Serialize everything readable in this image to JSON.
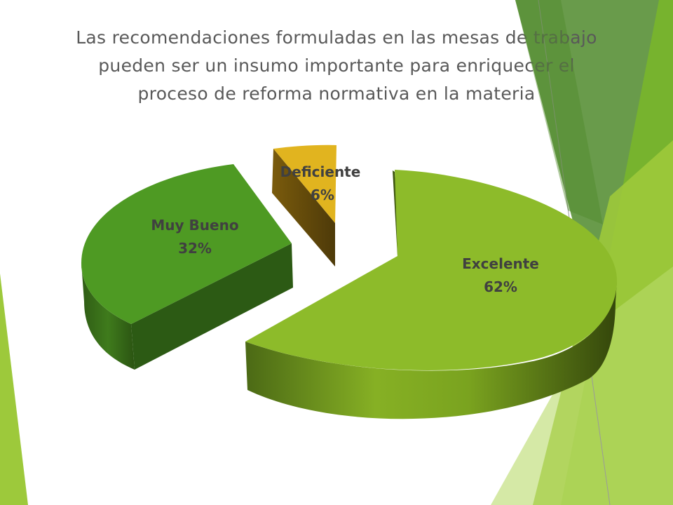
{
  "chart_data": {
    "type": "pie",
    "title": "Las recomendaciones formuladas en las mesas de trabajo pueden ser un insumo importante para enriquecer el proceso de reforma normativa en la materia",
    "style": "3d-exploded",
    "categories": [
      "Excelente",
      "Muy Bueno",
      "Deficiente"
    ],
    "values": [
      62,
      32,
      6
    ],
    "labels": [
      {
        "name": "Excelente",
        "value": "62%"
      },
      {
        "name": "Muy Bueno",
        "value": "32%"
      },
      {
        "name": "Deficiente",
        "value": "6%"
      }
    ],
    "colors": {
      "Excelente": "#8dbb2a",
      "Muy Bueno": "#4e9a23",
      "Deficiente": "#e1b41f"
    }
  },
  "theme": {
    "accent_light": "#9dc93b",
    "accent_mid": "#77b32e",
    "accent_dark": "#4f8a2b"
  }
}
